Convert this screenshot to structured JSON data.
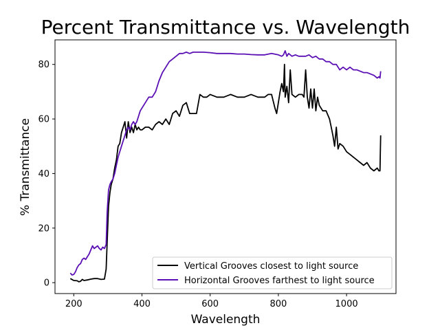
{
  "chart_data": {
    "type": "line",
    "title": "Percent Transmittance vs. Wavelength",
    "xlabel": "Wavelength",
    "ylabel": "% Transmittance",
    "xlim": [
      145,
      1145
    ],
    "ylim": [
      -4,
      89
    ],
    "xticks": [
      200,
      400,
      600,
      800,
      1000
    ],
    "yticks": [
      0,
      20,
      40,
      60,
      80
    ],
    "grid": false,
    "legend_position": "lower-right",
    "series": [
      {
        "name": "Vertical Grooves closest to light source",
        "color": "#000000",
        "x": [
          190,
          200,
          210,
          215,
          220,
          225,
          230,
          240,
          250,
          260,
          270,
          280,
          290,
          295,
          298,
          302,
          306,
          310,
          315,
          320,
          325,
          330,
          335,
          340,
          345,
          350,
          355,
          360,
          365,
          370,
          375,
          380,
          385,
          390,
          395,
          400,
          410,
          420,
          430,
          440,
          450,
          460,
          470,
          480,
          490,
          500,
          510,
          520,
          530,
          540,
          550,
          560,
          570,
          580,
          590,
          600,
          620,
          640,
          660,
          680,
          700,
          720,
          740,
          760,
          770,
          780,
          790,
          795,
          800,
          805,
          810,
          815,
          818,
          820,
          825,
          830,
          835,
          840,
          850,
          860,
          870,
          875,
          880,
          885,
          890,
          895,
          900,
          905,
          910,
          915,
          920,
          930,
          940,
          950,
          955,
          960,
          965,
          970,
          975,
          980,
          990,
          1000,
          1010,
          1020,
          1030,
          1040,
          1050,
          1060,
          1070,
          1080,
          1090,
          1095,
          1098,
          1100
        ],
        "values": [
          1.5,
          0.8,
          0.7,
          0.3,
          0.5,
          1.2,
          0.8,
          1.0,
          1.3,
          1.5,
          1.5,
          1.2,
          1.3,
          5,
          15,
          28,
          33,
          36,
          38,
          42,
          45,
          50,
          51,
          55,
          57,
          59,
          53,
          59,
          55,
          57,
          55,
          58,
          56,
          57,
          56,
          56,
          57,
          57,
          56,
          58,
          59,
          58,
          60,
          58,
          62,
          63,
          61,
          65,
          66,
          62,
          62,
          62,
          69,
          68,
          68,
          69,
          68,
          68,
          69,
          68,
          68,
          69,
          68,
          68,
          69,
          69,
          64,
          62,
          66,
          70,
          73,
          70,
          80,
          68,
          72,
          66,
          78,
          69,
          68,
          69,
          69,
          68,
          78,
          68,
          64,
          71,
          64,
          71,
          63,
          68,
          65,
          63,
          63,
          60,
          57,
          54,
          50,
          57,
          49,
          51,
          50,
          48,
          47,
          46,
          45,
          44,
          43,
          44,
          42,
          41,
          42,
          41,
          41,
          54
        ]
      },
      {
        "name": "Horizontal Grooves farthest to light source",
        "color": "#5a0fb5",
        "x": [
          190,
          195,
          200,
          205,
          210,
          215,
          220,
          225,
          230,
          235,
          240,
          245,
          250,
          255,
          260,
          265,
          270,
          275,
          280,
          285,
          290,
          295,
          298,
          302,
          306,
          310,
          315,
          320,
          325,
          330,
          335,
          340,
          345,
          350,
          355,
          360,
          365,
          370,
          375,
          380,
          385,
          390,
          395,
          400,
          410,
          420,
          430,
          440,
          450,
          460,
          470,
          480,
          490,
          500,
          510,
          520,
          530,
          540,
          550,
          560,
          580,
          600,
          620,
          640,
          660,
          680,
          700,
          720,
          740,
          760,
          780,
          800,
          810,
          815,
          820,
          825,
          830,
          840,
          850,
          860,
          870,
          880,
          890,
          900,
          910,
          920,
          930,
          940,
          950,
          960,
          970,
          980,
          990,
          1000,
          1010,
          1020,
          1030,
          1040,
          1050,
          1060,
          1070,
          1080,
          1090,
          1095,
          1098,
          1100
        ],
        "values": [
          3.5,
          2.8,
          3.0,
          4.0,
          5.5,
          6.5,
          7.0,
          8.5,
          9.0,
          8.5,
          9.5,
          10.5,
          12.0,
          13.5,
          12.5,
          13.0,
          13.5,
          12.5,
          12.0,
          13.0,
          12.5,
          14.0,
          26,
          34,
          36,
          37,
          38,
          40,
          43,
          46,
          48,
          50,
          52,
          54,
          56,
          57,
          56,
          58,
          59,
          58,
          59,
          61,
          63,
          64,
          66,
          68,
          68,
          70,
          74,
          77,
          79,
          81,
          82,
          83,
          84,
          84,
          84.5,
          84,
          84.5,
          84.5,
          84.5,
          84.3,
          84,
          84,
          84,
          83.8,
          83.8,
          83.6,
          83.5,
          83.5,
          84,
          83.5,
          83,
          83.5,
          85,
          83,
          84,
          83,
          83.5,
          83,
          83,
          83,
          83.5,
          82.5,
          83,
          82,
          82,
          81,
          81,
          80,
          80,
          78,
          79,
          78,
          79,
          78,
          78,
          77.5,
          77,
          77,
          76.5,
          76,
          75,
          75.5,
          75,
          77.5
        ]
      }
    ]
  }
}
